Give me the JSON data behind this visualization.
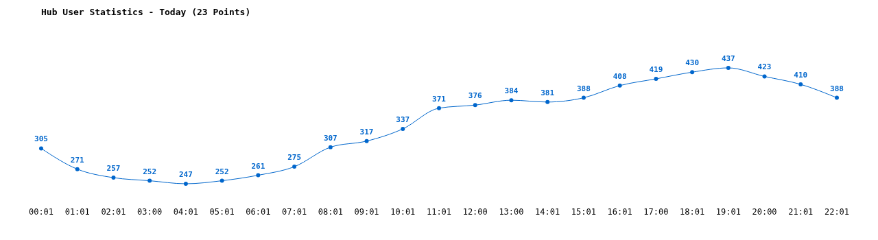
{
  "chart_data": {
    "type": "line",
    "title": "Hub User Statistics - Today (23 Points)",
    "categories": [
      "00:01",
      "01:01",
      "02:01",
      "03:00",
      "04:01",
      "05:01",
      "06:01",
      "07:01",
      "08:01",
      "09:01",
      "10:01",
      "11:01",
      "12:00",
      "13:00",
      "14:01",
      "15:01",
      "16:01",
      "17:00",
      "18:01",
      "19:01",
      "20:00",
      "21:01",
      "22:01"
    ],
    "series": [
      {
        "color": "#0066cc",
        "values": [
          305,
          271,
          257,
          252,
          247,
          252,
          261,
          275,
          307,
          317,
          337,
          371,
          376,
          384,
          381,
          388,
          408,
          419,
          430,
          437,
          423,
          410,
          388
        ]
      }
    ],
    "data_labels": true,
    "marker": "circle",
    "grid": false
  }
}
